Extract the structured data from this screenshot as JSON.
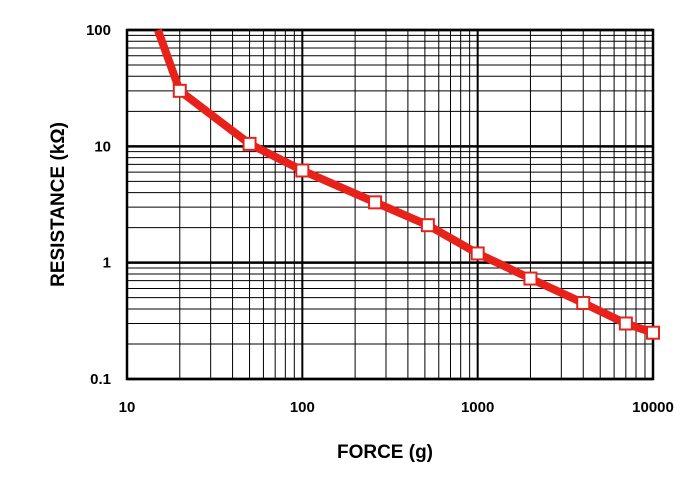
{
  "chart_data": {
    "type": "line",
    "title": "",
    "xlabel": "FORCE (g)",
    "ylabel": "RESISTANCE (kΩ)",
    "x_scale": "log",
    "y_scale": "log",
    "xlim": [
      10,
      10000
    ],
    "ylim": [
      0.1,
      100
    ],
    "x_ticks": [
      "10",
      "100",
      "1000",
      "10000"
    ],
    "y_ticks": [
      "100",
      "10",
      "1",
      "0.1"
    ],
    "grid": true,
    "line_color": "#e8211b",
    "marker": "square-hollow",
    "curve_start": {
      "x": 15,
      "y": 100
    },
    "series": [
      {
        "x": [
          20,
          50,
          100,
          260,
          520,
          1000,
          2000,
          4000,
          7000,
          10000
        ],
        "y": [
          30,
          10.5,
          6.2,
          3.3,
          2.1,
          1.2,
          0.73,
          0.45,
          0.3,
          0.25
        ]
      }
    ]
  }
}
